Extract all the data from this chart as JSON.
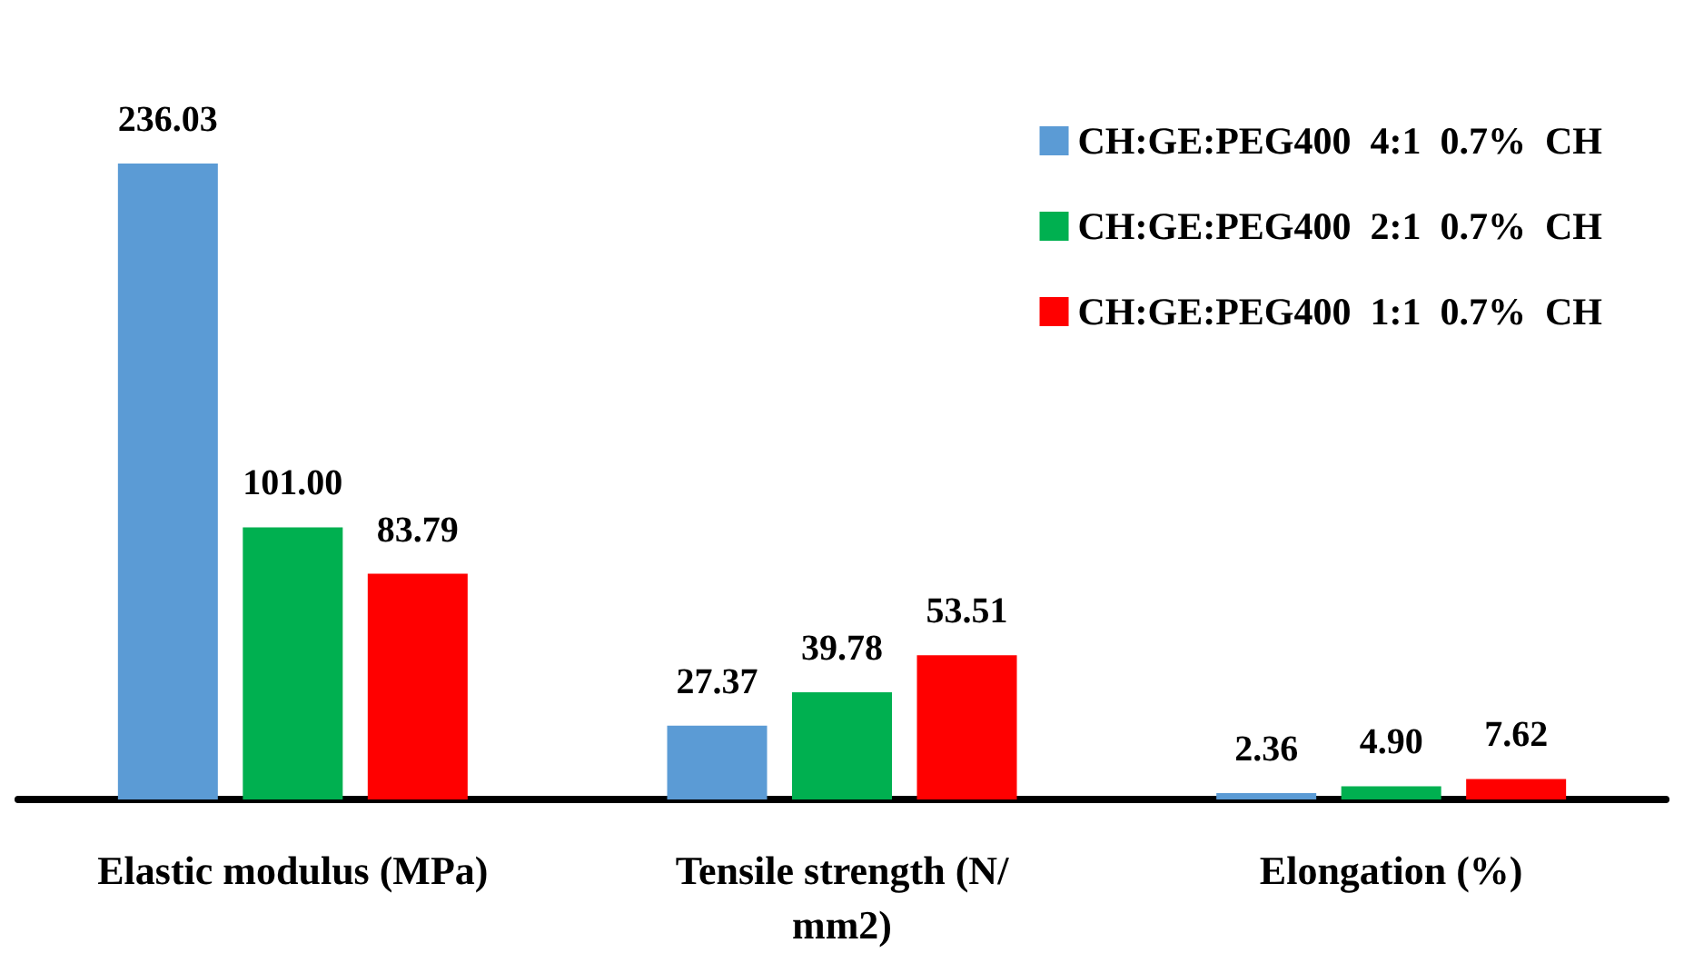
{
  "chart_data": {
    "type": "bar",
    "categories": [
      "Elastic modulus (MPa)",
      "Tensile strength (N/mm2)",
      "Elongation (%)"
    ],
    "series": [
      {
        "name": "CH:GE:PEG400  4:1  0.7%  CH",
        "color": "#5b9bd5",
        "values": [
          236.03,
          27.37,
          2.36
        ],
        "value_labels": [
          "236.03",
          "27.37",
          "2.36"
        ]
      },
      {
        "name": "CH:GE:PEG400  2:1  0.7%  CH",
        "color": "#00b050",
        "values": [
          101.0,
          39.78,
          4.9
        ],
        "value_labels": [
          "101.00",
          "39.78",
          "4.90"
        ]
      },
      {
        "name": "CH:GE:PEG400  1:1  0.7%  CH",
        "color": "#ff0000",
        "values": [
          83.79,
          53.51,
          7.62
        ],
        "value_labels": [
          "83.79",
          "53.51",
          "7.62"
        ]
      }
    ],
    "legend": "top right"
  }
}
